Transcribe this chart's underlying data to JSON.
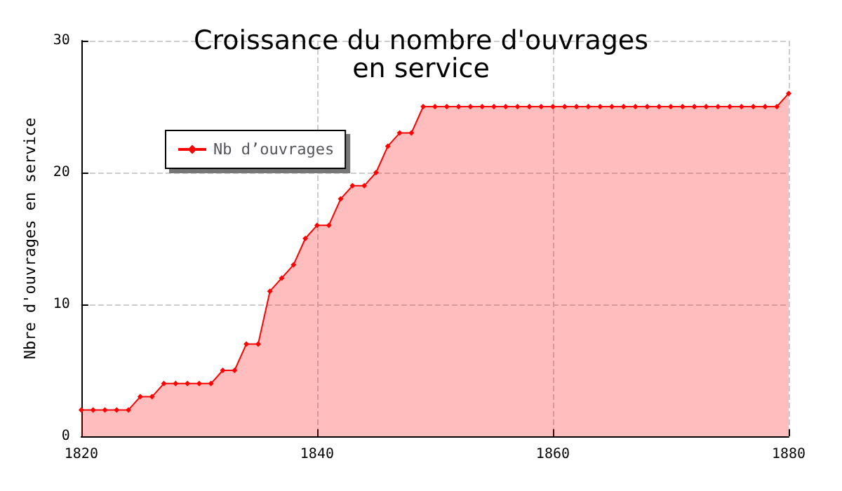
{
  "chart_data": {
    "type": "area",
    "title": "Croissance du nombre d'ouvrages\nen service",
    "ylabel": "Nbre d'ouvrages en service",
    "x": [
      1820,
      1821,
      1822,
      1823,
      1824,
      1825,
      1826,
      1827,
      1828,
      1829,
      1830,
      1831,
      1832,
      1833,
      1834,
      1835,
      1836,
      1837,
      1838,
      1839,
      1840,
      1841,
      1842,
      1843,
      1844,
      1845,
      1846,
      1847,
      1848,
      1849,
      1850,
      1851,
      1852,
      1853,
      1854,
      1855,
      1856,
      1857,
      1858,
      1859,
      1860,
      1861,
      1862,
      1863,
      1864,
      1865,
      1866,
      1867,
      1868,
      1869,
      1870,
      1871,
      1872,
      1873,
      1874,
      1875,
      1876,
      1877,
      1878,
      1879,
      1880
    ],
    "series": [
      {
        "name": "Nb d’ouvrages",
        "color": "#ff0000",
        "values": [
          2,
          2,
          2,
          2,
          2,
          3,
          3,
          4,
          4,
          4,
          4,
          4,
          5,
          5,
          7,
          7,
          11,
          12,
          13,
          15,
          16,
          16,
          18,
          19,
          19,
          20,
          22,
          23,
          23,
          25,
          25,
          25,
          25,
          25,
          25,
          25,
          25,
          25,
          25,
          25,
          25,
          25,
          25,
          25,
          25,
          25,
          25,
          25,
          25,
          25,
          25,
          25,
          25,
          25,
          25,
          25,
          25,
          25,
          25,
          25,
          26
        ]
      }
    ],
    "xlim": [
      1820,
      1880
    ],
    "xticks": [
      1820,
      1840,
      1860,
      1880
    ],
    "ylim": [
      0,
      30
    ],
    "yticks": [
      0,
      10,
      20,
      30
    ],
    "grid": true,
    "legend": "top left",
    "marker": "diamond",
    "line_style": "solid"
  }
}
